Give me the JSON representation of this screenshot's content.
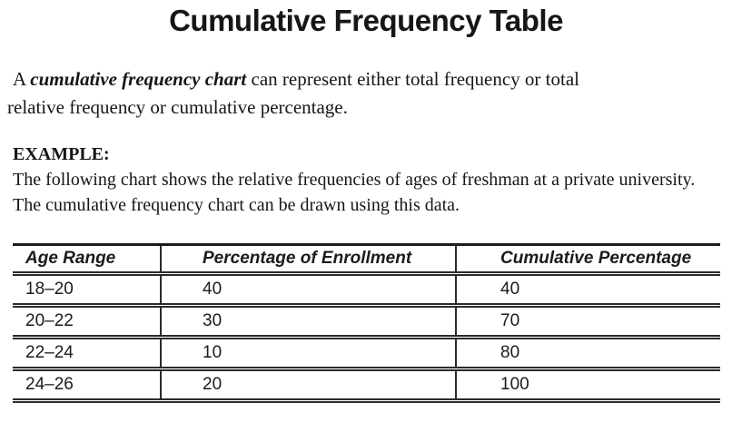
{
  "document": {
    "title": "Cumulative Frequency Table",
    "intro": {
      "line1_lead": "A",
      "line1_emphasis": "cumulative frequency chart",
      "line1_rest": "can represent either total frequency or total",
      "line2": "relative frequency or cumulative percentage."
    },
    "example": {
      "heading": "EXAMPLE:",
      "line1": "The following chart shows the relative frequencies of ages of freshman at a private university.",
      "line2": "The cumulative frequency chart can be drawn using this data."
    }
  },
  "chart_data": {
    "type": "table",
    "title": "Cumulative Frequency Table",
    "columns": [
      "Age Range",
      "Percentage of Enrollment",
      "Cumulative Percentage"
    ],
    "rows": [
      [
        "18–20",
        "40",
        "40"
      ],
      [
        "20–22",
        "30",
        "70"
      ],
      [
        "22–24",
        "10",
        "80"
      ],
      [
        "24–26",
        "20",
        "100"
      ]
    ]
  },
  "colors": {
    "text": "#161616",
    "table_line": "#2b2b2b",
    "table_top_border": "#1c1c1c",
    "background": "#ffffff"
  }
}
